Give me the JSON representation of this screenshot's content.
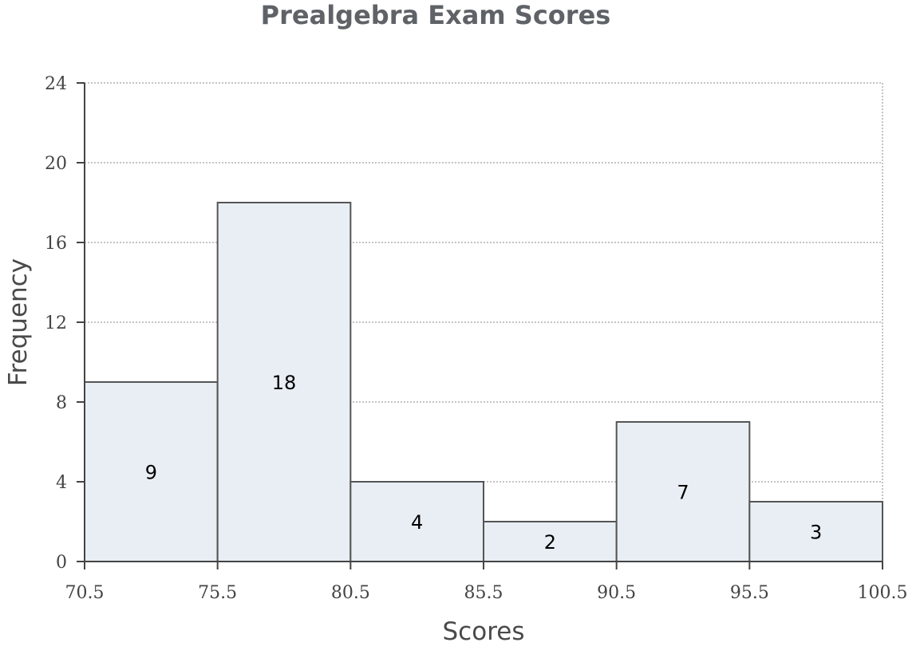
{
  "chart_data": {
    "type": "bar",
    "title": "Prealgebra Exam Scores",
    "xlabel": "Scores",
    "ylabel": "Frequency",
    "bin_edges": [
      70.5,
      75.5,
      80.5,
      85.5,
      90.5,
      95.5,
      100.5
    ],
    "values": [
      9,
      18,
      4,
      2,
      7,
      3
    ],
    "data_labels": [
      "9",
      "18",
      "4",
      "2",
      "7",
      "3"
    ],
    "x_tick_labels": [
      "70.5",
      "75.5",
      "80.5",
      "85.5",
      "90.5",
      "95.5",
      "100.5"
    ],
    "y_tick_labels": [
      "0",
      "4",
      "8",
      "12",
      "16",
      "20",
      "24"
    ],
    "y_ticks": [
      0,
      4,
      8,
      12,
      16,
      20,
      24
    ],
    "xlim": [
      70.5,
      100.5
    ],
    "ylim": [
      0,
      24
    ],
    "grid": true,
    "bar_color": "#e8eef4",
    "bar_edge_color": "#555555"
  }
}
